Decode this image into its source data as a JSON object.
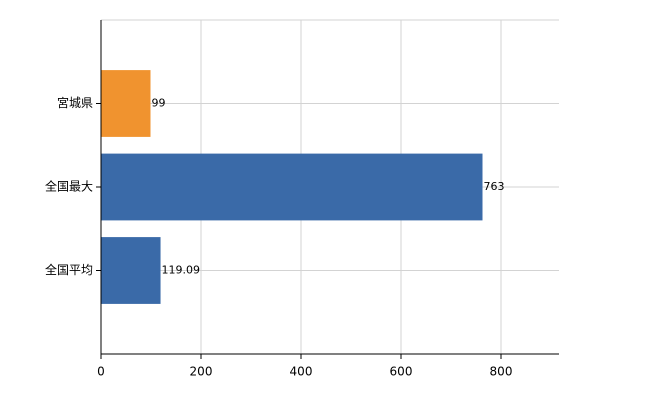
{
  "chart_data": {
    "type": "bar",
    "orientation": "horizontal",
    "categories": [
      "宮城県",
      "全国最大",
      "全国平均"
    ],
    "values": [
      99,
      763,
      119.09
    ],
    "colors": [
      "#f0932f",
      "#3a6aa8",
      "#3a6aa8"
    ],
    "xlim": [
      0,
      916
    ],
    "xticks": [
      0,
      200,
      400,
      600,
      800
    ],
    "grid": true
  }
}
